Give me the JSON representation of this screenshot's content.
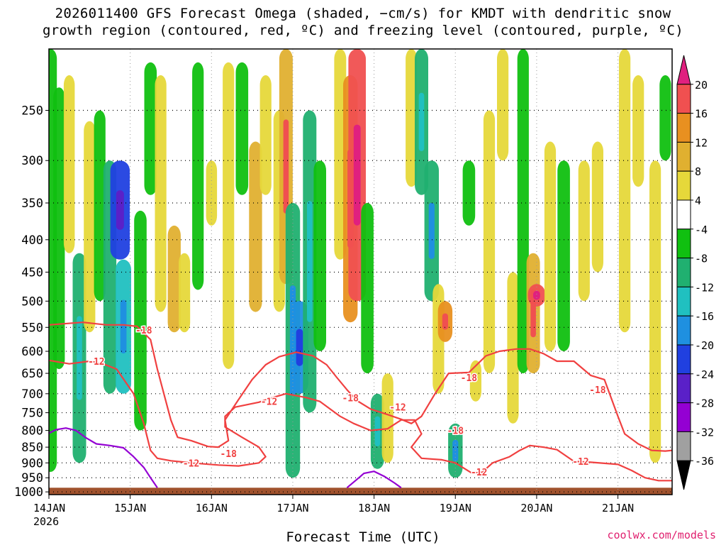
{
  "title": {
    "line1": "2026011400 GFS Forecast Omega (shaded, −cm/s) for KMDT with dendritic snow",
    "line2": "growth region (contoured, red, ºC) and freezing level (contoured, purple, ºC)"
  },
  "credit": "coolwx.com/models",
  "colors": {
    "terrain": "#a0522d",
    "dgz_contour": "#f04040",
    "freezing_contour": "#9400d3",
    "grid": "#000000"
  },
  "chart_data": {
    "type": "heatmap",
    "title": "2026011400 GFS Forecast Omega (shaded, −cm/s) for KMDT with dendritic snow growth region (contoured, red, ºC) and freezing level (contoured, purple, ºC)",
    "xlabel": "Forecast Time (UTC)",
    "ylabel": "",
    "x_ticks": [
      "14JAN\n2026",
      "15JAN",
      "16JAN",
      "17JAN",
      "18JAN",
      "19JAN",
      "20JAN",
      "21JAN"
    ],
    "x_tick_hours": [
      0,
      24,
      48,
      72,
      96,
      120,
      144,
      168
    ],
    "xlim": [
      0,
      184
    ],
    "y_ticks": [
      250,
      300,
      350,
      400,
      450,
      500,
      550,
      600,
      650,
      700,
      750,
      800,
      850,
      900,
      950,
      1000
    ],
    "ylim": [
      1010,
      200
    ],
    "y_scale": "log-pressure",
    "grid": true,
    "colorbar": {
      "levels": [
        -36,
        -32,
        -28,
        -24,
        -20,
        -16,
        -12,
        -8,
        -4,
        4,
        8,
        12,
        16,
        20
      ],
      "colors": [
        "#000000",
        "#a0a0a0",
        "#9400d3",
        "#5a20c8",
        "#2040e0",
        "#1f90e0",
        "#20c0c0",
        "#20b070",
        "#10c010",
        "#ffffff",
        "#e6d83a",
        "#e0b030",
        "#e89020",
        "#f05050",
        "#e0207f"
      ]
    },
    "series": [
      {
        "kind": "omega_cells",
        "values": [
          {
            "t": 0.5,
            "p0": 200,
            "p1": 930,
            "v": -8
          },
          {
            "t": 3,
            "p0": 230,
            "p1": 640,
            "v": -6
          },
          {
            "t": 6,
            "p0": 220,
            "p1": 420,
            "v": 5
          },
          {
            "t": 9,
            "p0": 420,
            "p1": 900,
            "v": -10
          },
          {
            "t": 12,
            "p0": 260,
            "p1": 560,
            "v": 6
          },
          {
            "t": 15,
            "p0": 250,
            "p1": 500,
            "v": -6
          },
          {
            "t": 18,
            "p0": 300,
            "p1": 700,
            "v": -9
          },
          {
            "t": 21,
            "p0": 300,
            "p1": 430,
            "v": -22
          },
          {
            "t": 22,
            "p0": 430,
            "p1": 700,
            "v": -14
          },
          {
            "t": 27,
            "p0": 360,
            "p1": 800,
            "v": -8
          },
          {
            "t": 30,
            "p0": 210,
            "p1": 340,
            "v": -8
          },
          {
            "t": 33,
            "p0": 220,
            "p1": 520,
            "v": 6
          },
          {
            "t": 37,
            "p0": 380,
            "p1": 560,
            "v": 9
          },
          {
            "t": 40,
            "p0": 420,
            "p1": 560,
            "v": 6
          },
          {
            "t": 44,
            "p0": 210,
            "p1": 480,
            "v": -6
          },
          {
            "t": 48,
            "p0": 300,
            "p1": 380,
            "v": 5
          },
          {
            "t": 53,
            "p0": 210,
            "p1": 640,
            "v": 6
          },
          {
            "t": 57,
            "p0": 210,
            "p1": 340,
            "v": -8
          },
          {
            "t": 61,
            "p0": 280,
            "p1": 520,
            "v": 9
          },
          {
            "t": 64,
            "p0": 220,
            "p1": 340,
            "v": 6
          },
          {
            "t": 68,
            "p0": 250,
            "p1": 520,
            "v": 6
          },
          {
            "t": 70,
            "p0": 200,
            "p1": 470,
            "v": 10
          },
          {
            "t": 72,
            "p0": 350,
            "p1": 950,
            "v": -12
          },
          {
            "t": 74,
            "p0": 500,
            "p1": 700,
            "v": -18
          },
          {
            "t": 77,
            "p0": 250,
            "p1": 750,
            "v": -10
          },
          {
            "t": 80,
            "p0": 300,
            "p1": 600,
            "v": -8
          },
          {
            "t": 86,
            "p0": 200,
            "p1": 430,
            "v": 7
          },
          {
            "t": 89,
            "p0": 220,
            "p1": 540,
            "v": 12
          },
          {
            "t": 91,
            "p0": 200,
            "p1": 500,
            "v": 18
          },
          {
            "t": 94,
            "p0": 350,
            "p1": 650,
            "v": -8
          },
          {
            "t": 97,
            "p0": 700,
            "p1": 920,
            "v": -10
          },
          {
            "t": 100,
            "p0": 650,
            "p1": 900,
            "v": 6
          },
          {
            "t": 107,
            "p0": 200,
            "p1": 330,
            "v": 6
          },
          {
            "t": 110,
            "p0": 200,
            "p1": 340,
            "v": -10
          },
          {
            "t": 113,
            "p0": 300,
            "p1": 500,
            "v": -12
          },
          {
            "t": 115,
            "p0": 470,
            "p1": 700,
            "v": 6
          },
          {
            "t": 117,
            "p0": 500,
            "p1": 580,
            "v": 12
          },
          {
            "t": 120,
            "p0": 780,
            "p1": 950,
            "v": -12
          },
          {
            "t": 124,
            "p0": 300,
            "p1": 380,
            "v": -8
          },
          {
            "t": 126,
            "p0": 620,
            "p1": 720,
            "v": 6
          },
          {
            "t": 130,
            "p0": 250,
            "p1": 650,
            "v": 6
          },
          {
            "t": 134,
            "p0": 200,
            "p1": 300,
            "v": 6
          },
          {
            "t": 137,
            "p0": 450,
            "p1": 780,
            "v": 6
          },
          {
            "t": 140,
            "p0": 200,
            "p1": 650,
            "v": -6
          },
          {
            "t": 143,
            "p0": 420,
            "p1": 650,
            "v": 10
          },
          {
            "t": 144,
            "p0": 470,
            "p1": 510,
            "v": 18
          },
          {
            "t": 148,
            "p0": 280,
            "p1": 600,
            "v": 6
          },
          {
            "t": 152,
            "p0": 300,
            "p1": 600,
            "v": -8
          },
          {
            "t": 158,
            "p0": 300,
            "p1": 500,
            "v": 6
          },
          {
            "t": 162,
            "p0": 280,
            "p1": 450,
            "v": 6
          },
          {
            "t": 170,
            "p0": 200,
            "p1": 560,
            "v": 6
          },
          {
            "t": 174,
            "p0": 220,
            "p1": 330,
            "v": 6
          },
          {
            "t": 179,
            "p0": 300,
            "p1": 900,
            "v": 6
          },
          {
            "t": 182,
            "p0": 220,
            "p1": 300,
            "v": -6
          }
        ]
      },
      {
        "name": "-18",
        "kind": "contour",
        "label_points": [
          {
            "t": 28,
            "p": 555
          },
          {
            "t": 53,
            "p": 870
          },
          {
            "t": 89,
            "p": 710
          },
          {
            "t": 120,
            "p": 800
          },
          {
            "t": 124,
            "p": 660
          },
          {
            "t": 162,
            "p": 690
          }
        ],
        "values": [
          [
            0,
            545
          ],
          [
            10,
            540
          ],
          [
            17,
            545
          ],
          [
            22,
            545
          ],
          [
            26,
            548
          ],
          [
            30,
            575
          ],
          [
            32,
            640
          ],
          [
            36,
            770
          ],
          [
            38,
            820
          ],
          [
            42,
            830
          ],
          [
            47,
            848
          ],
          [
            50,
            850
          ],
          [
            53,
            830
          ],
          [
            52,
            770
          ],
          [
            56,
            715
          ],
          [
            60,
            665
          ],
          [
            64,
            630
          ],
          [
            68,
            612
          ],
          [
            73,
            602
          ],
          [
            78,
            610
          ],
          [
            82,
            630
          ],
          [
            85,
            660
          ],
          [
            88,
            690
          ],
          [
            91,
            718
          ],
          [
            95,
            740
          ],
          [
            100,
            755
          ],
          [
            104,
            768
          ],
          [
            107,
            780
          ],
          [
            110,
            760
          ],
          [
            114,
            700
          ],
          [
            118,
            650
          ],
          [
            124,
            648
          ],
          [
            129,
            610
          ],
          [
            133,
            600
          ],
          [
            138,
            595
          ],
          [
            142,
            595
          ],
          [
            146,
            605
          ],
          [
            150,
            622
          ],
          [
            155,
            622
          ],
          [
            160,
            655
          ],
          [
            164,
            665
          ],
          [
            168,
            760
          ],
          [
            170,
            810
          ],
          [
            174,
            840
          ],
          [
            178,
            860
          ],
          [
            182,
            862
          ],
          [
            184,
            860
          ]
        ]
      },
      {
        "name": "-12",
        "kind": "contour",
        "label_points": [
          {
            "t": 14,
            "p": 622
          },
          {
            "t": 42,
            "p": 900
          },
          {
            "t": 65,
            "p": 720
          },
          {
            "t": 103,
            "p": 735
          },
          {
            "t": 127,
            "p": 930
          },
          {
            "t": 157,
            "p": 895
          }
        ],
        "values": [
          [
            0,
            620
          ],
          [
            6,
            628
          ],
          [
            12,
            622
          ],
          [
            16,
            628
          ],
          [
            20,
            640
          ],
          [
            25,
            700
          ],
          [
            28,
            780
          ],
          [
            30,
            860
          ],
          [
            32,
            885
          ],
          [
            36,
            893
          ],
          [
            42,
            900
          ],
          [
            50,
            907
          ],
          [
            56,
            910
          ],
          [
            62,
            900
          ],
          [
            64,
            880
          ],
          [
            62,
            850
          ],
          [
            57,
            820
          ],
          [
            52,
            790
          ],
          [
            52,
            760
          ],
          [
            55,
            735
          ],
          [
            62,
            722
          ],
          [
            66,
            710
          ],
          [
            70,
            700
          ],
          [
            76,
            710
          ],
          [
            80,
            720
          ],
          [
            86,
            760
          ],
          [
            90,
            780
          ],
          [
            95,
            800
          ],
          [
            100,
            795
          ],
          [
            104,
            770
          ],
          [
            108,
            770
          ],
          [
            110,
            810
          ],
          [
            107,
            850
          ],
          [
            110,
            885
          ],
          [
            116,
            890
          ],
          [
            120,
            900
          ],
          [
            125,
            935
          ],
          [
            128,
            930
          ],
          [
            131,
            900
          ],
          [
            136,
            880
          ],
          [
            139,
            860
          ],
          [
            142,
            845
          ],
          [
            146,
            850
          ],
          [
            150,
            858
          ],
          [
            155,
            895
          ],
          [
            160,
            898
          ],
          [
            168,
            905
          ],
          [
            172,
            925
          ],
          [
            176,
            950
          ],
          [
            180,
            960
          ],
          [
            184,
            960
          ]
        ]
      },
      {
        "name": "0",
        "kind": "freezing_contour",
        "values": [
          [
            0,
            808
          ],
          [
            2,
            798
          ],
          [
            5,
            793
          ],
          [
            8,
            800
          ],
          [
            11,
            822
          ],
          [
            14,
            840
          ],
          [
            18,
            845
          ],
          [
            22,
            852
          ],
          [
            25,
            880
          ],
          [
            28,
            915
          ],
          [
            30,
            950
          ],
          [
            32,
            985
          ]
        ]
      },
      {
        "name": "0",
        "kind": "freezing_contour",
        "values": [
          [
            88,
            985
          ],
          [
            91,
            955
          ],
          [
            93,
            935
          ],
          [
            96,
            928
          ],
          [
            99,
            945
          ],
          [
            102,
            968
          ],
          [
            104,
            985
          ]
        ]
      }
    ],
    "terrain_top_hpa": 985
  }
}
